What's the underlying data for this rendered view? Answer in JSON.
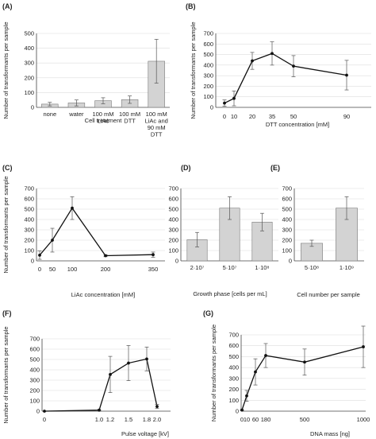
{
  "chart_data": [
    {
      "id": "A",
      "panel_label": "(A)",
      "type": "bar",
      "ylabel": "Number of transformants per sample",
      "xlabel": "Cell treatment",
      "ylim": [
        0,
        500
      ],
      "yticks": [
        0,
        100,
        200,
        300,
        400,
        500
      ],
      "categories": [
        [
          "none"
        ],
        [
          "water"
        ],
        [
          "100 mM",
          "LiAc"
        ],
        [
          "100 mM",
          "DTT"
        ],
        [
          "100 mM",
          "LiAc and",
          "90 mM",
          "DTT"
        ]
      ],
      "values": [
        22,
        30,
        45,
        52,
        312
      ],
      "errors": [
        12,
        20,
        20,
        25,
        148
      ],
      "grid": true
    },
    {
      "id": "B",
      "panel_label": "(B)",
      "type": "line",
      "ylabel": "Number of transformants per sample",
      "xlabel": "DTT concentration [mM]",
      "ylim": [
        0,
        700
      ],
      "yticks": [
        0,
        100,
        200,
        300,
        400,
        500,
        600,
        700
      ],
      "xtick_labels": [
        "0",
        "10",
        "20",
        "35",
        "50",
        "90"
      ],
      "x": [
        0,
        10,
        20,
        35,
        50,
        90
      ],
      "values": [
        40,
        85,
        440,
        510,
        390,
        305
      ],
      "errors": [
        30,
        70,
        80,
        110,
        100,
        140
      ],
      "grid": true
    },
    {
      "id": "C",
      "panel_label": "(C)",
      "type": "line",
      "ylabel": "Number of transformants per sample",
      "xlabel": "LiAc concentration [mM]",
      "ylim": [
        0,
        700
      ],
      "yticks": [
        0,
        100,
        200,
        300,
        400,
        500,
        600,
        700
      ],
      "xtick_labels": [
        "0",
        "50",
        "100",
        "200",
        "350"
      ],
      "x": [
        0,
        50,
        100,
        200,
        350
      ],
      "values": [
        55,
        200,
        510,
        50,
        60
      ],
      "errors": [
        40,
        115,
        110,
        10,
        25
      ],
      "grid": true
    },
    {
      "id": "D",
      "panel_label": "(D)",
      "type": "bar",
      "ylabel": "",
      "xlabel": "Growth phase [cells per mL]",
      "ylim": [
        0,
        700
      ],
      "yticks": [
        0,
        100,
        200,
        300,
        400,
        500,
        600,
        700
      ],
      "categories": [
        [
          "2·10⁷"
        ],
        [
          "5·10⁷"
        ],
        [
          "1·10⁸"
        ]
      ],
      "values": [
        205,
        510,
        375
      ],
      "errors": [
        70,
        110,
        85
      ],
      "grid": true
    },
    {
      "id": "E",
      "panel_label": "(E)",
      "type": "bar",
      "ylabel": "",
      "xlabel": "Cell number per sample",
      "ylim": [
        0,
        700
      ],
      "yticks": [
        0,
        100,
        200,
        300,
        400,
        500,
        600,
        700
      ],
      "categories": [
        [
          "5·10⁸"
        ],
        [
          "1·10⁹"
        ]
      ],
      "values": [
        170,
        510
      ],
      "errors": [
        30,
        110
      ],
      "grid": true
    },
    {
      "id": "F",
      "panel_label": "(F)",
      "type": "line",
      "ylabel": "Number of transformants per sample",
      "xlabel": "Pulse voltage [kV]",
      "ylim": [
        0,
        700
      ],
      "yticks": [
        0,
        100,
        200,
        300,
        400,
        500,
        600,
        700
      ],
      "xtick_labels": [
        "0",
        "1.0",
        "1.2",
        "1.5",
        "1.8",
        "2.0"
      ],
      "x": [
        0,
        1.0,
        1.2,
        1.5,
        1.8,
        2.0
      ],
      "values": [
        0,
        10,
        355,
        465,
        505,
        45
      ],
      "errors": [
        0,
        5,
        175,
        170,
        115,
        20
      ],
      "grid": true
    },
    {
      "id": "G",
      "panel_label": "(G)",
      "type": "line",
      "ylabel": "Number of transformants per sample",
      "xlabel": "DNA mass [ng]",
      "ylim": [
        0,
        700
      ],
      "yticks": [
        0,
        100,
        200,
        300,
        400,
        500,
        600,
        700
      ],
      "xtick_labels": [
        "0",
        "10",
        "60",
        "180",
        "500",
        "1000"
      ],
      "x": [
        0,
        10,
        60,
        180,
        500,
        1000
      ],
      "values": [
        10,
        140,
        360,
        510,
        450,
        590
      ],
      "errors": [
        5,
        50,
        120,
        110,
        120,
        190
      ],
      "grid": true
    }
  ]
}
